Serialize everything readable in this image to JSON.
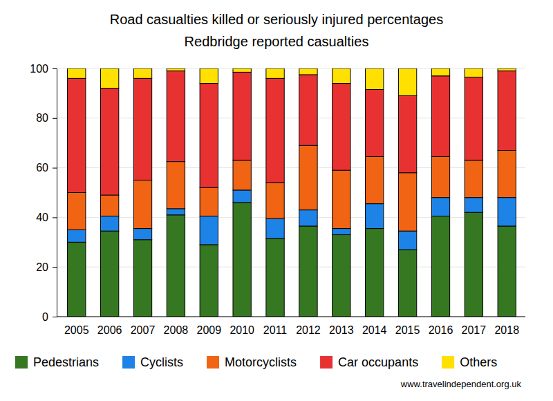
{
  "chart_data": {
    "type": "bar",
    "title": "Road casualties killed or seriously injured percentages",
    "subtitle": "Redbridge reported casualties",
    "annotation": "www.travelindependent.org.uk",
    "categories": [
      "2005",
      "2006",
      "2007",
      "2008",
      "2009",
      "2010",
      "2011",
      "2012",
      "2013",
      "2014",
      "2015",
      "2016",
      "2017",
      "2018"
    ],
    "series": [
      {
        "name": "Pedestrians",
        "color": "#367821",
        "values": [
          30,
          34.5,
          31,
          41,
          29,
          46,
          31.5,
          36.5,
          33,
          35.5,
          27,
          40.5,
          42,
          36.5
        ]
      },
      {
        "name": "Cyclists",
        "color": "#1e83e6",
        "values": [
          5,
          6,
          4.5,
          2.5,
          11.5,
          5,
          8,
          6.5,
          2.5,
          10,
          7.5,
          7.5,
          6,
          11.5
        ]
      },
      {
        "name": "Motorcyclists",
        "color": "#f06414",
        "values": [
          15,
          8.5,
          19.5,
          19,
          11.5,
          12,
          14.5,
          26,
          23.5,
          19,
          23.5,
          16.5,
          15,
          19
        ]
      },
      {
        "name": "Car occupants",
        "color": "#e83232",
        "values": [
          46,
          43,
          41,
          36.5,
          42,
          35.5,
          42,
          28.5,
          35,
          27,
          31,
          32.5,
          33.5,
          32
        ]
      },
      {
        "name": "Others",
        "color": "#ffe000",
        "values": [
          4,
          8,
          4,
          1,
          6,
          1.5,
          4,
          2.5,
          6,
          8.5,
          11,
          3,
          3.5,
          1
        ]
      }
    ],
    "ylim": [
      0,
      100
    ],
    "yticks": [
      0,
      20,
      40,
      60,
      80,
      100
    ],
    "stacked": true,
    "grid": true,
    "legend": "bottom"
  }
}
